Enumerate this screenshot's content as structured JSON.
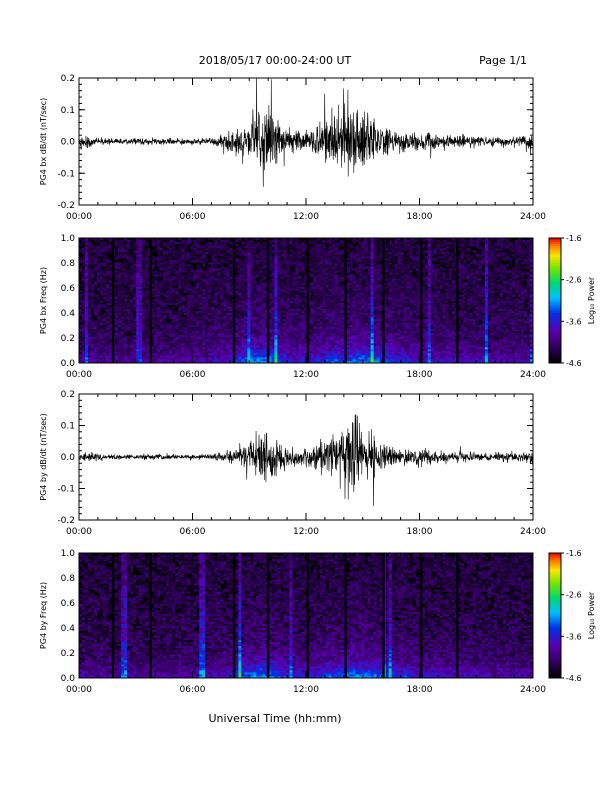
{
  "header": {
    "title": "2018/05/17  00:00-24:00 UT",
    "page_label": "Page 1/1"
  },
  "footer": {
    "xlabel": "Universal Time (hh:mm)"
  },
  "colors": {
    "trace": "#000000",
    "axis": "#000000",
    "background": "#ffffff"
  },
  "chart_data": [
    {
      "type": "line",
      "panel": "bx-dbdt",
      "ylabel": "PG4 bx dB/dt (nT/sec)",
      "xlim": [
        0,
        24
      ],
      "ylim": [
        -0.2,
        0.2
      ],
      "xticks": [
        "00:00",
        "06:00",
        "12:00",
        "18:00",
        "24:00"
      ],
      "yticks": [
        "0.2",
        "0.1",
        "0.0",
        "-0.1",
        "-0.2"
      ],
      "series": [
        {
          "x": [
            0,
            1,
            2,
            3,
            4,
            5,
            6,
            7,
            8,
            8.5,
            9,
            9.5,
            10,
            10.5,
            11,
            11.5,
            12,
            12.5,
            13,
            13.5,
            14,
            14.5,
            15,
            15.5,
            16,
            16.5,
            17,
            17.5,
            18,
            18.5,
            19,
            19.5,
            20,
            21,
            22,
            23,
            24
          ],
          "values": [
            0.04,
            0.02,
            0.015,
            0.015,
            0.02,
            0.015,
            0.015,
            0.02,
            0.05,
            0.08,
            0.12,
            0.15,
            0.2,
            0.12,
            0.08,
            0.06,
            0.06,
            0.08,
            0.12,
            0.15,
            0.2,
            0.15,
            0.2,
            0.15,
            0.09,
            0.07,
            0.06,
            0.05,
            0.05,
            0.06,
            0.04,
            0.035,
            0.03,
            0.03,
            0.025,
            0.02,
            0.06
          ]
        }
      ]
    },
    {
      "type": "heatmap",
      "panel": "bx-spectrogram",
      "ylabel": "PG4 bx Freq (Hz)",
      "xlim": [
        0,
        24
      ],
      "ylim": [
        0,
        1.0
      ],
      "xticks": [
        "00:00",
        "06:00",
        "12:00",
        "18:00",
        "24:00"
      ],
      "yticks": [
        "1.0",
        "0.8",
        "0.6",
        "0.4",
        "0.2",
        "0.0"
      ],
      "colorbar": {
        "label": "Log₁₀ Power",
        "ticks": [
          "-1.6",
          "-2.6",
          "-3.6",
          "-4.6"
        ],
        "range": [
          -4.6,
          -1.6
        ]
      },
      "activity_x": [
        0,
        2,
        4,
        6,
        8,
        9,
        10,
        11,
        12,
        13,
        14,
        15,
        16,
        17,
        18,
        19,
        20,
        22,
        24
      ],
      "activity": [
        0.35,
        0.3,
        0.3,
        0.3,
        0.5,
        0.8,
        0.85,
        0.55,
        0.5,
        0.65,
        0.75,
        0.8,
        0.7,
        0.6,
        0.5,
        0.45,
        0.45,
        0.35,
        0.35
      ],
      "gaps": [
        1.8,
        3.8,
        8.2,
        10.0,
        12.1,
        14.1,
        16.1,
        18.1,
        20.0
      ]
    },
    {
      "type": "line",
      "panel": "by-dbdt",
      "ylabel": "PG4 by dB/dt (nT/sec)",
      "xlim": [
        0,
        24
      ],
      "ylim": [
        -0.2,
        0.2
      ],
      "xticks": [
        "00:00",
        "06:00",
        "12:00",
        "18:00",
        "24:00"
      ],
      "yticks": [
        "0.2",
        "0.1",
        "0.0",
        "-0.1",
        "-0.2"
      ],
      "series": [
        {
          "x": [
            0,
            1,
            2,
            3,
            4,
            5,
            6,
            7,
            8,
            8.5,
            9,
            9.5,
            10,
            10.5,
            11,
            11.5,
            12,
            12.5,
            13,
            13.5,
            14,
            14.5,
            15,
            15.5,
            16,
            16.5,
            17,
            17.5,
            18,
            18.5,
            19,
            19.5,
            20,
            21,
            22,
            23,
            24
          ],
          "values": [
            0.03,
            0.02,
            0.015,
            0.015,
            0.015,
            0.012,
            0.012,
            0.015,
            0.03,
            0.05,
            0.07,
            0.12,
            0.15,
            0.09,
            0.06,
            0.05,
            0.05,
            0.07,
            0.1,
            0.13,
            0.2,
            0.2,
            0.15,
            0.12,
            0.08,
            0.06,
            0.05,
            0.045,
            0.05,
            0.045,
            0.035,
            0.03,
            0.03,
            0.025,
            0.025,
            0.025,
            0.04
          ]
        }
      ]
    },
    {
      "type": "heatmap",
      "panel": "by-spectrogram",
      "ylabel": "PG4 by Freq (Hz)",
      "xlim": [
        0,
        24
      ],
      "ylim": [
        0,
        1.0
      ],
      "xticks": [
        "00:00",
        "06:00",
        "12:00",
        "18:00",
        "24:00"
      ],
      "yticks": [
        "1.0",
        "0.8",
        "0.6",
        "0.4",
        "0.2",
        "0.0"
      ],
      "colorbar": {
        "label": "Log₁₀ Power",
        "ticks": [
          "-1.6",
          "-2.6",
          "-3.6",
          "-4.6"
        ],
        "range": [
          -4.6,
          -1.6
        ]
      },
      "activity_x": [
        0,
        2,
        4,
        6,
        8,
        9,
        10,
        11,
        12,
        13,
        14,
        15,
        16,
        17,
        18,
        19,
        20,
        22,
        24
      ],
      "activity": [
        0.35,
        0.3,
        0.3,
        0.3,
        0.5,
        0.8,
        0.85,
        0.55,
        0.5,
        0.65,
        0.75,
        0.8,
        0.7,
        0.6,
        0.5,
        0.45,
        0.45,
        0.35,
        0.35
      ],
      "gaps": [
        1.8,
        3.8,
        8.2,
        10.0,
        12.1,
        14.1,
        16.1,
        18.1,
        20.0
      ]
    }
  ]
}
